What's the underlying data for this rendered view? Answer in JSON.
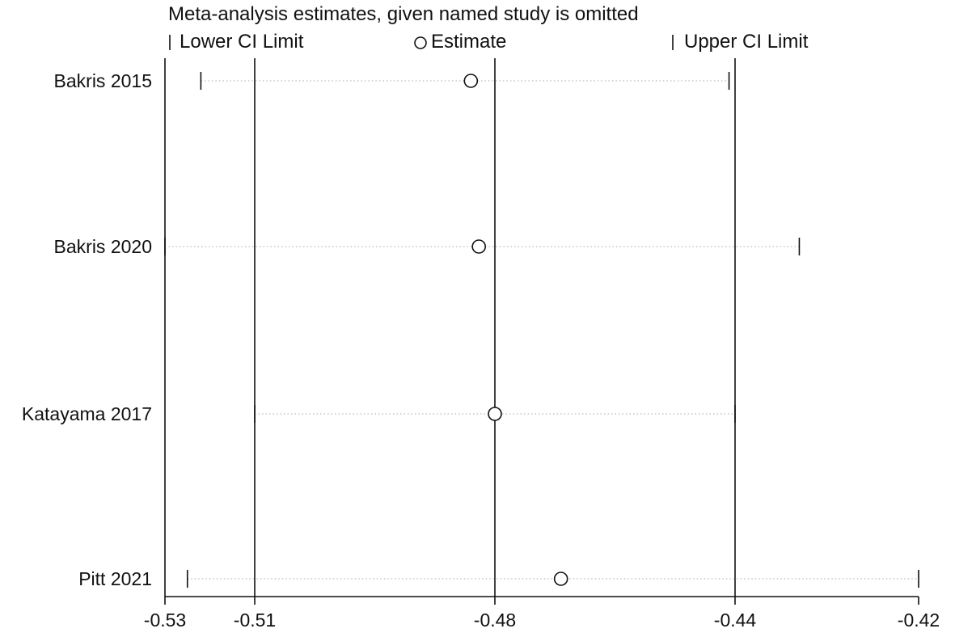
{
  "chart_data": {
    "type": "scatter",
    "title": "Meta-analysis estimates, given named study is omitted",
    "legend": {
      "placement": "top",
      "entries": [
        "Lower CI Limit",
        "Estimate",
        "Upper CI Limit"
      ]
    },
    "xlim": [
      -0.53,
      -0.42
    ],
    "xticks": [
      -0.53,
      -0.51,
      -0.48,
      -0.44,
      -0.42
    ],
    "xtick_labels": [
      "-0.53",
      "-0.51",
      "-0.48",
      "-0.44",
      "-0.42"
    ],
    "reference_lines": [
      -0.51,
      -0.48,
      -0.44
    ],
    "grid": false,
    "studies": [
      {
        "name": "Bakris 2015",
        "lower": -0.522,
        "estimate": -0.483,
        "upper": -0.441
      },
      {
        "name": "Bakris 2020",
        "lower": -0.53,
        "estimate": -0.482,
        "upper": -0.433
      },
      {
        "name": "Katayama 2017",
        "lower": -0.51,
        "estimate": -0.48,
        "upper": -0.44
      },
      {
        "name": "Pitt 2021",
        "lower": -0.525,
        "estimate": -0.469,
        "upper": -0.42
      }
    ]
  }
}
